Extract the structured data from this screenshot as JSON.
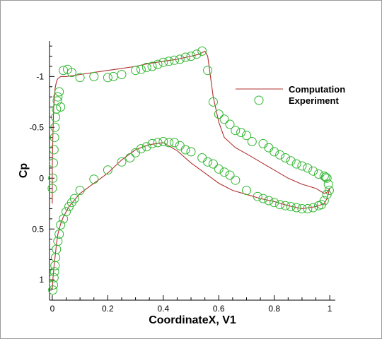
{
  "chart_data": {
    "type": "scatter",
    "xlabel": "CoordinateX, V1",
    "ylabel": "Cp",
    "xlim": [
      -0.01,
      1.02
    ],
    "ylim": [
      1.2,
      -1.35
    ],
    "y_axis_inverted": true,
    "grid": false,
    "legend_position": "right",
    "x_ticks": [
      0,
      0.2,
      0.4,
      0.6,
      0.8,
      1
    ],
    "y_ticks": [
      -1,
      -0.5,
      0,
      0.5,
      1
    ],
    "x_tick_labels": [
      "0",
      "0.2",
      "0.4",
      "0.6",
      "0.8",
      "1"
    ],
    "y_tick_labels": [
      "-1",
      "-0.5",
      "0",
      "0.5",
      "1"
    ],
    "series": [
      {
        "name": "Computation",
        "kind": "line",
        "color": "#b03030",
        "x": [
          0.0,
          0.0,
          0.002,
          0.005,
          0.01,
          0.015,
          0.02,
          0.03,
          0.05,
          0.1,
          0.15,
          0.2,
          0.25,
          0.3,
          0.35,
          0.4,
          0.45,
          0.5,
          0.53,
          0.55,
          0.56,
          0.58,
          0.6,
          0.62,
          0.64,
          0.66,
          0.7,
          0.75,
          0.8,
          0.85,
          0.9,
          0.95,
          0.98,
          0.99,
          1.0,
          0.99,
          0.98,
          0.95,
          0.9,
          0.85,
          0.8,
          0.75,
          0.7,
          0.65,
          0.6,
          0.55,
          0.5,
          0.45,
          0.4,
          0.35,
          0.3,
          0.25,
          0.2,
          0.15,
          0.1,
          0.06,
          0.04,
          0.03,
          0.02,
          0.015,
          0.01,
          0.005,
          0.002,
          0.0
        ],
        "y": [
          0.25,
          -0.1,
          -0.4,
          -0.7,
          -0.88,
          -0.95,
          -0.98,
          -1.0,
          -1.0,
          -1.02,
          -1.04,
          -1.06,
          -1.08,
          -1.1,
          -1.13,
          -1.15,
          -1.17,
          -1.2,
          -1.22,
          -1.25,
          -1.2,
          -0.8,
          -0.55,
          -0.4,
          -0.35,
          -0.3,
          -0.24,
          -0.16,
          -0.08,
          0.0,
          0.06,
          0.1,
          0.15,
          0.14,
          0.1,
          0.2,
          0.25,
          0.28,
          0.3,
          0.27,
          0.23,
          0.2,
          0.16,
          0.12,
          0.05,
          -0.05,
          -0.15,
          -0.27,
          -0.35,
          -0.33,
          -0.28,
          -0.18,
          -0.05,
          0.05,
          0.15,
          0.28,
          0.38,
          0.45,
          0.55,
          0.65,
          0.78,
          0.9,
          1.0,
          1.1
        ]
      },
      {
        "name": "Experiment",
        "kind": "scatter",
        "marker": "open-circle",
        "color": "#2db52d",
        "x": [
          0.0,
          0.002,
          0.004,
          0.006,
          0.008,
          0.01,
          0.012,
          0.015,
          0.018,
          0.02,
          0.025,
          0.03,
          0.04,
          0.055,
          0.07,
          0.1,
          0.15,
          0.2,
          0.22,
          0.25,
          0.3,
          0.32,
          0.34,
          0.36,
          0.38,
          0.4,
          0.42,
          0.44,
          0.46,
          0.48,
          0.5,
          0.52,
          0.54,
          0.56,
          0.58,
          0.6,
          0.62,
          0.64,
          0.66,
          0.68,
          0.7,
          0.72,
          0.76,
          0.78,
          0.8,
          0.82,
          0.84,
          0.86,
          0.88,
          0.9,
          0.92,
          0.94,
          0.96,
          0.98,
          0.985,
          0.99,
          0.995,
          0.998,
          0.99,
          0.98,
          0.97,
          0.96,
          0.94,
          0.92,
          0.9,
          0.88,
          0.86,
          0.84,
          0.82,
          0.8,
          0.78,
          0.76,
          0.74,
          0.7,
          0.66,
          0.64,
          0.62,
          0.6,
          0.58,
          0.56,
          0.54,
          0.5,
          0.48,
          0.46,
          0.44,
          0.42,
          0.4,
          0.38,
          0.36,
          0.34,
          0.32,
          0.3,
          0.28,
          0.25,
          0.2,
          0.15,
          0.1,
          0.08,
          0.07,
          0.06,
          0.05,
          0.04,
          0.03,
          0.025,
          0.02,
          0.015,
          0.012,
          0.01,
          0.008,
          0.006,
          0.004,
          0.002
        ],
        "y": [
          0.1,
          0.0,
          -0.15,
          -0.28,
          -0.4,
          -0.5,
          -0.6,
          -0.68,
          -0.76,
          -0.8,
          -0.85,
          -0.7,
          -1.06,
          -1.07,
          -1.04,
          -0.99,
          -1.0,
          -0.99,
          -1.0,
          -1.02,
          -1.06,
          -1.07,
          -1.09,
          -1.1,
          -1.12,
          -1.14,
          -1.15,
          -1.16,
          -1.17,
          -1.19,
          -1.2,
          -1.22,
          -1.25,
          -1.06,
          -0.75,
          -0.63,
          -0.58,
          -0.53,
          -0.47,
          -0.45,
          -0.42,
          -0.36,
          -0.34,
          -0.3,
          -0.26,
          -0.23,
          -0.2,
          -0.17,
          -0.14,
          -0.12,
          -0.1,
          -0.07,
          -0.04,
          -0.02,
          -0.01,
          0.0,
          0.06,
          0.12,
          0.16,
          0.22,
          0.26,
          0.27,
          0.29,
          0.3,
          0.3,
          0.29,
          0.28,
          0.27,
          0.26,
          0.24,
          0.22,
          0.2,
          0.18,
          0.12,
          0.02,
          -0.03,
          -0.06,
          -0.09,
          -0.14,
          -0.16,
          -0.2,
          -0.26,
          -0.28,
          -0.32,
          -0.35,
          -0.35,
          -0.36,
          -0.35,
          -0.34,
          -0.31,
          -0.29,
          -0.25,
          -0.2,
          -0.16,
          -0.08,
          0.01,
          0.12,
          0.2,
          0.24,
          0.28,
          0.33,
          0.4,
          0.46,
          0.55,
          0.62,
          0.7,
          0.78,
          0.86,
          0.92,
          0.98,
          1.05,
          1.1
        ]
      }
    ]
  }
}
